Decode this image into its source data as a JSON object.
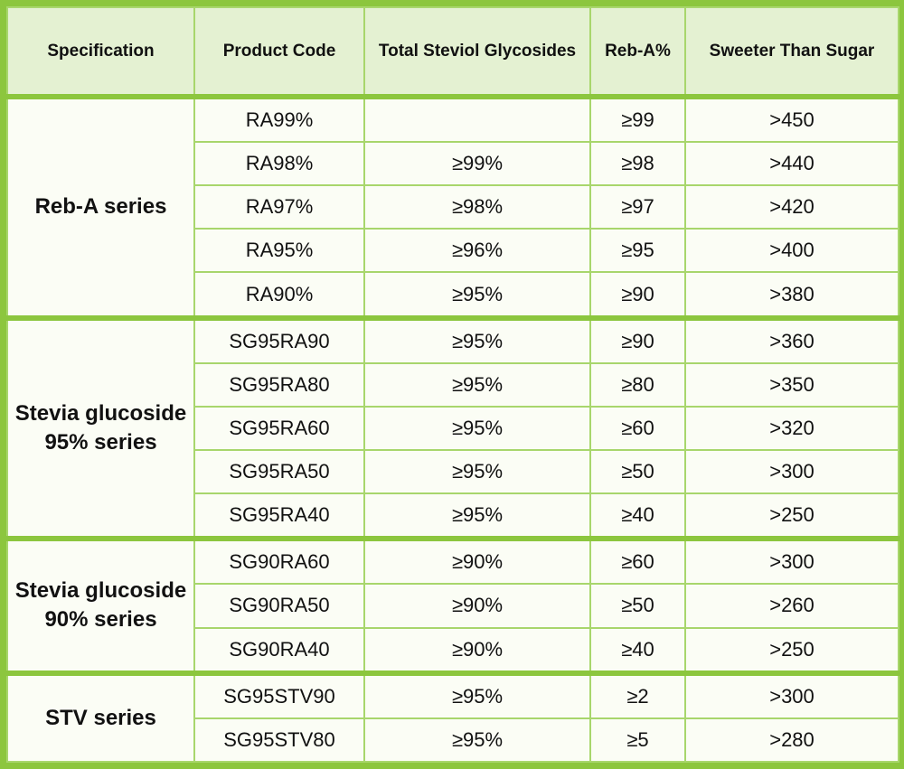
{
  "table": {
    "header": [
      "Specification",
      "Product Code",
      "Total Steviol Glycosides",
      "Reb-A%",
      "Sweeter Than Sugar"
    ],
    "groups": [
      {
        "label": "Reb-A series",
        "rows": [
          [
            "RA99%",
            null,
            "≥99",
            ">450"
          ],
          [
            "RA98%",
            "≥99%",
            "≥98",
            ">440"
          ],
          [
            "RA97%",
            "≥98%",
            "≥97",
            ">420"
          ],
          [
            "RA95%",
            "≥96%",
            "≥95",
            ">400"
          ],
          [
            "RA90%",
            "≥95%",
            "≥90",
            ">380"
          ]
        ]
      },
      {
        "label": "Stevia glucoside 95% series",
        "rows": [
          [
            "SG95RA90",
            "≥95%",
            "≥90",
            ">360"
          ],
          [
            "SG95RA80",
            "≥95%",
            "≥80",
            ">350"
          ],
          [
            "SG95RA60",
            "≥95%",
            "≥60",
            ">320"
          ],
          [
            "SG95RA50",
            "≥95%",
            "≥50",
            ">300"
          ],
          [
            "SG95RA40",
            "≥95%",
            "≥40",
            ">250"
          ]
        ]
      },
      {
        "label": "Stevia glucoside 90% series",
        "rows": [
          [
            "SG90RA60",
            "≥90%",
            "≥60",
            ">300"
          ],
          [
            "SG90RA50",
            "≥90%",
            "≥50",
            ">260"
          ],
          [
            "SG90RA40",
            "≥90%",
            "≥40",
            ">250"
          ]
        ]
      },
      {
        "label": "STV series",
        "rows": [
          [
            "SG95STV90",
            "≥95%",
            "≥2",
            ">300"
          ],
          [
            "SG95STV80",
            "≥95%",
            "≥5",
            ">280"
          ]
        ]
      }
    ]
  }
}
